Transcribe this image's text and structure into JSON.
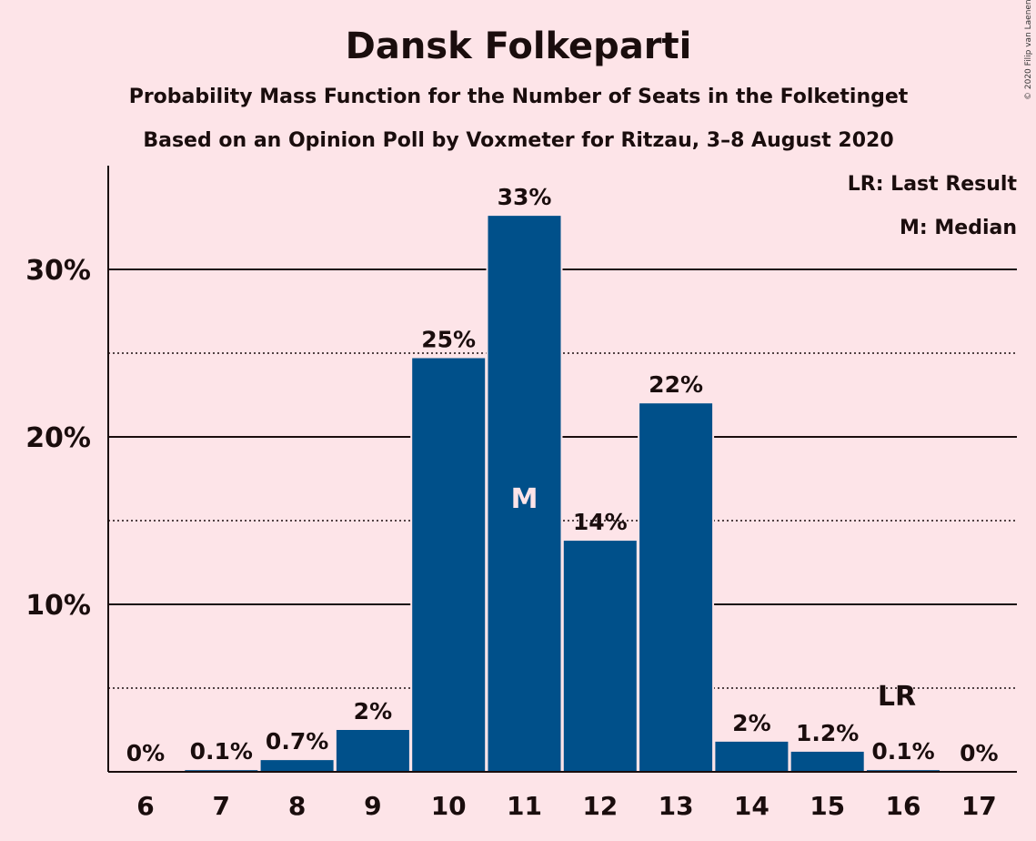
{
  "chart_data": {
    "type": "bar",
    "title": "Dansk Folkeparti",
    "subtitle": "Probability Mass Function for the Number of Seats in the Folketinget",
    "subtitle2": "Based on an Opinion Poll by Voxmeter for Ritzau, 3–8 August 2020",
    "copyright": "© 2020 Filip van Laenen",
    "legend": {
      "last_result": "LR: Last Result",
      "median": "M: Median"
    },
    "categories": [
      "6",
      "7",
      "8",
      "9",
      "10",
      "11",
      "12",
      "13",
      "14",
      "15",
      "16",
      "17"
    ],
    "values": [
      0,
      0.1,
      0.7,
      2.5,
      24.7,
      33.2,
      13.8,
      22.0,
      1.8,
      1.2,
      0.1,
      0
    ],
    "labels": [
      "0%",
      "0.1%",
      "0.7%",
      "2%",
      "25%",
      "33%",
      "14%",
      "22%",
      "2%",
      "1.2%",
      "0.1%",
      "0%"
    ],
    "ylim": [
      0,
      36
    ],
    "yticks": [
      {
        "value": 10,
        "label": "10%"
      },
      {
        "value": 20,
        "label": "20%"
      },
      {
        "value": 30,
        "label": "30%"
      }
    ],
    "minor_gridlines": [
      5,
      15,
      25
    ],
    "median_marker": {
      "category": "11",
      "label": "M"
    },
    "last_result_marker": {
      "category": "16",
      "label": "LR"
    },
    "colors": {
      "bar": "#00508a",
      "background": "#fde4e8",
      "text": "#1a0d0d",
      "median_text": "#fde4e8"
    }
  }
}
